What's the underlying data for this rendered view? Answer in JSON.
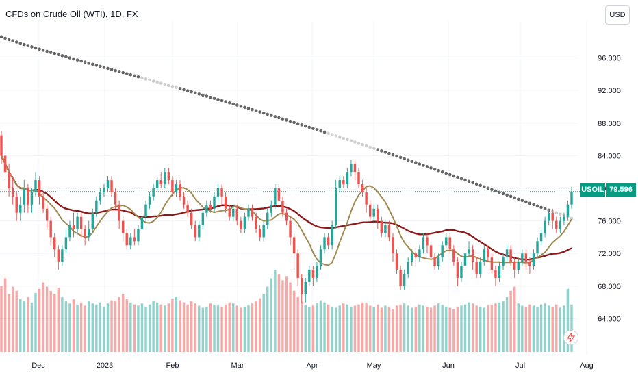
{
  "symbol_title": "CFDs on Crude Oil (WTI), 1D, FX",
  "currency_button": "USD",
  "price_badge": {
    "symbol": "USOIL",
    "price": "79.596"
  },
  "colors": {
    "up": "#26a69a",
    "down": "#ef5350",
    "ma_fast": "#a08a52",
    "ma_mid": "#8b1a1a",
    "ma_slow": "#666666",
    "badge": "#089981"
  },
  "icons": {
    "flash": "lightning-icon"
  },
  "chart_data": {
    "type": "candlestick",
    "y_ticks": [
      "96.000",
      "92.000",
      "88.000",
      "84.000",
      "80.000",
      "76.000",
      "72.000",
      "68.000",
      "64.000"
    ],
    "y_tick_values": [
      96,
      92,
      88,
      84,
      80,
      76,
      72,
      68,
      64
    ],
    "x_ticks": [
      "Dec",
      "2023",
      "Feb",
      "Mar",
      "Apr",
      "May",
      "Jun",
      "Jul",
      "Aug"
    ],
    "last_price": 79.596,
    "ylim": [
      59.5,
      100.5
    ],
    "grid": true,
    "candles": [
      [
        86.5,
        84,
        87,
        83
      ],
      [
        84,
        82,
        85,
        81
      ],
      [
        82,
        80,
        83,
        79
      ],
      [
        80,
        79,
        81.5,
        78
      ],
      [
        79,
        77,
        79.5,
        76
      ],
      [
        77,
        78,
        79,
        76
      ],
      [
        78,
        80,
        81,
        77
      ],
      [
        80,
        78,
        80.5,
        77
      ],
      [
        78,
        79.5,
        80,
        77
      ],
      [
        79.5,
        81,
        82,
        79
      ],
      [
        81,
        79,
        81.5,
        78
      ],
      [
        79,
        77.5,
        79.5,
        77
      ],
      [
        77.5,
        76,
        78,
        75
      ],
      [
        76,
        74,
        76.5,
        73
      ],
      [
        74,
        72.5,
        74.5,
        71.5
      ],
      [
        72.5,
        71,
        73,
        70
      ],
      [
        71,
        72.5,
        73,
        70.5
      ],
      [
        72.5,
        74,
        75,
        72
      ],
      [
        74,
        75.5,
        76,
        73.5
      ],
      [
        75.5,
        75,
        77,
        74
      ],
      [
        75,
        76.5,
        77,
        74.5
      ],
      [
        76.5,
        75,
        77,
        74
      ],
      [
        75,
        74,
        75.5,
        73
      ],
      [
        74,
        75,
        76,
        73.5
      ],
      [
        75,
        77,
        77.5,
        74.5
      ],
      [
        77,
        78.5,
        79,
        76.5
      ],
      [
        78.5,
        79.5,
        80,
        78
      ],
      [
        79.5,
        80,
        80.5,
        79
      ],
      [
        80,
        81,
        81.5,
        79.5
      ],
      [
        81,
        79.5,
        81.5,
        79
      ],
      [
        79.5,
        78,
        80,
        77.5
      ],
      [
        78,
        76,
        78.5,
        75
      ],
      [
        76,
        74.5,
        76.5,
        73.5
      ],
      [
        74.5,
        73,
        75,
        72.5
      ],
      [
        73,
        74,
        74.5,
        72.5
      ],
      [
        74,
        73.5,
        75,
        73
      ],
      [
        73.5,
        75,
        75.5,
        73
      ],
      [
        75,
        76.5,
        77,
        74.5
      ],
      [
        76.5,
        78,
        78.5,
        76
      ],
      [
        78,
        79,
        79.5,
        77.5
      ],
      [
        79,
        80,
        80.5,
        78.5
      ],
      [
        80,
        81,
        81.5,
        79.5
      ],
      [
        81,
        80.5,
        82,
        80
      ],
      [
        80.5,
        82,
        82.5,
        80
      ],
      [
        82,
        81,
        82.5,
        80.5
      ],
      [
        81,
        79.5,
        81.5,
        79
      ],
      [
        79.5,
        80.5,
        81,
        79
      ],
      [
        80.5,
        79,
        81,
        78.5
      ],
      [
        79,
        78,
        79.5,
        77.5
      ],
      [
        78,
        77,
        78.5,
        76.5
      ],
      [
        77,
        75.5,
        77.5,
        75
      ],
      [
        75.5,
        74,
        76,
        73.5
      ],
      [
        74,
        75.5,
        76,
        73.5
      ],
      [
        75.5,
        77,
        77.5,
        75
      ],
      [
        77,
        78,
        78.5,
        76.5
      ],
      [
        78,
        77.5,
        78.5,
        77
      ],
      [
        77.5,
        79,
        79.5,
        77
      ],
      [
        79,
        80,
        80.5,
        78.5
      ],
      [
        80,
        79,
        80.5,
        78
      ],
      [
        79,
        77.5,
        79.5,
        77
      ],
      [
        77.5,
        76.5,
        78,
        76
      ],
      [
        76.5,
        77.5,
        78,
        76
      ],
      [
        77.5,
        76,
        78,
        75.5
      ],
      [
        76,
        75,
        76.5,
        74.5
      ],
      [
        75,
        76.5,
        77,
        74.5
      ],
      [
        76.5,
        77.5,
        78,
        76
      ],
      [
        77.5,
        76.5,
        78,
        76
      ],
      [
        76.5,
        75,
        77,
        74.5
      ],
      [
        75,
        74,
        75.5,
        73.5
      ],
      [
        74,
        75.5,
        76,
        73.5
      ],
      [
        75.5,
        77,
        77.5,
        75
      ],
      [
        77,
        78,
        78.5,
        76.5
      ],
      [
        78,
        80,
        80.5,
        77.5
      ],
      [
        80,
        78.5,
        80.5,
        78
      ],
      [
        78.5,
        77,
        79,
        76.5
      ],
      [
        77,
        76,
        77.5,
        75.5
      ],
      [
        76,
        74,
        76.5,
        73
      ],
      [
        74,
        72,
        74.5,
        70
      ],
      [
        72,
        69,
        72.5,
        68
      ],
      [
        69,
        67,
        69.5,
        66
      ],
      [
        67,
        68.5,
        69,
        66
      ],
      [
        68.5,
        70,
        70.5,
        68
      ],
      [
        70,
        69,
        70.5,
        68
      ],
      [
        69,
        70.5,
        71,
        68.5
      ],
      [
        70.5,
        72.5,
        73,
        70
      ],
      [
        72.5,
        74,
        74.5,
        72
      ],
      [
        74,
        73,
        74.5,
        72.5
      ],
      [
        73,
        75.5,
        76,
        72.5
      ],
      [
        75.5,
        80,
        81,
        75
      ],
      [
        80,
        81,
        81.5,
        79.5
      ],
      [
        81,
        80.5,
        81.5,
        80
      ],
      [
        80.5,
        82,
        82.5,
        80
      ],
      [
        82,
        83,
        83.5,
        81.5
      ],
      [
        83,
        82,
        83.5,
        81
      ],
      [
        82,
        80.5,
        82.5,
        80
      ],
      [
        80.5,
        79.5,
        81,
        79
      ],
      [
        79.5,
        78,
        80,
        77
      ],
      [
        78,
        76.5,
        78.5,
        76
      ],
      [
        76.5,
        77.5,
        78,
        76
      ],
      [
        77.5,
        76,
        78,
        75
      ],
      [
        76,
        74.5,
        76.5,
        74
      ],
      [
        74.5,
        75.5,
        76,
        74
      ],
      [
        75.5,
        74,
        76,
        73.5
      ],
      [
        74,
        72,
        74.5,
        71
      ],
      [
        72,
        70,
        72.5,
        69.5
      ],
      [
        70,
        68,
        70.5,
        67.5
      ],
      [
        68,
        69.5,
        70,
        67.5
      ],
      [
        69.5,
        71,
        71.5,
        69
      ],
      [
        71,
        72,
        72.5,
        70.5
      ],
      [
        72,
        71.5,
        72.5,
        70.5
      ],
      [
        71.5,
        72.5,
        73,
        71
      ],
      [
        72.5,
        74,
        74.5,
        72
      ],
      [
        74,
        73,
        74.5,
        72
      ],
      [
        73,
        71.5,
        73.5,
        71
      ],
      [
        71.5,
        70.5,
        72,
        70
      ],
      [
        70.5,
        71.5,
        72,
        70
      ],
      [
        71.5,
        73,
        73.5,
        71
      ],
      [
        73,
        74,
        74.5,
        72.5
      ],
      [
        74,
        72.5,
        74.5,
        72
      ],
      [
        72.5,
        71,
        73,
        70.5
      ],
      [
        71,
        69,
        71.5,
        68
      ],
      [
        69,
        70.5,
        71,
        68.5
      ],
      [
        70.5,
        72,
        72.5,
        70
      ],
      [
        72,
        72.5,
        73.5,
        71.5
      ],
      [
        72.5,
        71,
        73,
        70
      ],
      [
        71,
        69.5,
        71.5,
        69
      ],
      [
        69.5,
        71,
        71.5,
        69
      ],
      [
        71,
        72.5,
        73,
        70.5
      ],
      [
        72.5,
        71.5,
        73,
        71
      ],
      [
        71.5,
        70,
        72,
        69.5
      ],
      [
        70,
        69,
        70.5,
        68
      ],
      [
        69,
        70.5,
        71,
        68.5
      ],
      [
        70.5,
        71.5,
        72,
        70
      ],
      [
        71.5,
        72.5,
        73,
        71
      ],
      [
        72.5,
        71,
        73,
        70.5
      ],
      [
        71,
        70,
        71.5,
        69
      ],
      [
        70,
        71,
        71.5,
        69.5
      ],
      [
        71,
        72,
        72.5,
        70.5
      ],
      [
        72,
        71,
        72.5,
        70
      ],
      [
        71,
        70.5,
        71.5,
        69.5
      ],
      [
        70.5,
        72,
        72.5,
        70
      ],
      [
        72,
        73.5,
        74,
        71.5
      ],
      [
        73.5,
        74.5,
        75,
        73
      ],
      [
        74.5,
        76,
        76.5,
        74
      ],
      [
        76,
        77,
        77.5,
        75.5
      ],
      [
        77,
        76,
        77.5,
        75
      ],
      [
        76,
        75,
        76.5,
        74.5
      ],
      [
        75,
        76,
        76.5,
        74.5
      ],
      [
        76,
        76.5,
        77,
        75.5
      ],
      [
        76.5,
        78,
        78.5,
        76
      ],
      [
        78,
        79.6,
        80.2,
        77.5
      ]
    ],
    "volumes": [
      63,
      70,
      55,
      62,
      58,
      50,
      48,
      52,
      47,
      56,
      60,
      66,
      62,
      58,
      55,
      61,
      52,
      48,
      46,
      50,
      45,
      47,
      44,
      48,
      46,
      45,
      47,
      43,
      46,
      49,
      48,
      52,
      55,
      50,
      47,
      45,
      44,
      46,
      43,
      45,
      48,
      47,
      45,
      44,
      46,
      50,
      52,
      49,
      47,
      45,
      48,
      46,
      44,
      42,
      43,
      46,
      45,
      44,
      43,
      45,
      47,
      46,
      44,
      42,
      43,
      45,
      46,
      48,
      51,
      55,
      62,
      70,
      78,
      74,
      68,
      72,
      66,
      58,
      52,
      48,
      45,
      43,
      44,
      46,
      49,
      47,
      45,
      43,
      42,
      44,
      46,
      45,
      43,
      44,
      45,
      47,
      46,
      44,
      43,
      45,
      42,
      44,
      43,
      41,
      44,
      45,
      46,
      44,
      42,
      43,
      45,
      44,
      43,
      42,
      44,
      46,
      45,
      43,
      42,
      41,
      43,
      44,
      45,
      47,
      46,
      44,
      43,
      42,
      44,
      45,
      46,
      47,
      48,
      52,
      58,
      62,
      46,
      44,
      43,
      45,
      44,
      43,
      45,
      46,
      44,
      43,
      45,
      42,
      44,
      60,
      45
    ]
  }
}
